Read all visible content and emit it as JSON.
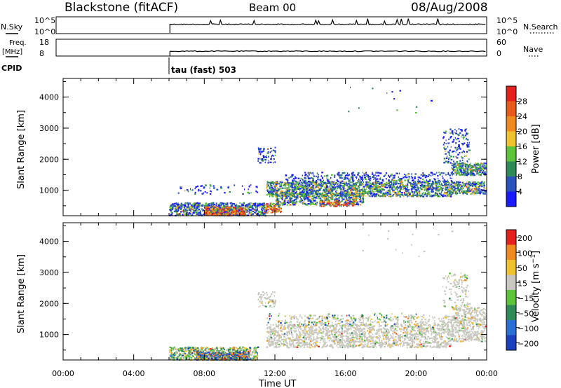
{
  "header": {
    "station": "Blackstone (fitACF)",
    "beam": "Beam 00",
    "date": "08/Aug/2008"
  },
  "strips": {
    "nsky_label": "N.Sky",
    "nsky_top": "10^5",
    "nsky_bottom": "10^0",
    "nsearch_label": "N.Search",
    "nsearch_top": "10^5",
    "nsearch_bottom": "10^0",
    "freq_label_1": "Freq.",
    "freq_label_2": "[MHz]",
    "freq_top": "18",
    "freq_bottom": "8",
    "nave_label": "Nave",
    "nave_top": "60",
    "nave_bottom": "0",
    "cpid_label": "CPID",
    "cpid_value": "tau (fast) 503"
  },
  "chart_data": [
    {
      "type": "heatmap",
      "ylabel": "Slant Range [km]",
      "yticks": [
        1000,
        2000,
        3000,
        4000
      ],
      "ylim": [
        180,
        4600
      ],
      "colorbar": {
        "label": "Power [dB]",
        "ticks": [
          "4",
          "8",
          "12",
          "16",
          "20",
          "24",
          "28"
        ],
        "colors": [
          "#1a1aff",
          "#2a52be",
          "#2e8b57",
          "#5cc43a",
          "#f2c12e",
          "#f08a1c",
          "#e85a1a",
          "#e6201b"
        ]
      },
      "regions": [
        {
          "t": [
            6.0,
            11.5
          ],
          "r": [
            200,
            650
          ],
          "level": "low-mid"
        },
        {
          "t": [
            8.0,
            10.3
          ],
          "r": [
            200,
            500
          ],
          "level": "high"
        },
        {
          "t": [
            11.5,
            22.0
          ],
          "r": [
            800,
            1400
          ],
          "level": "mid"
        },
        {
          "t": [
            12.0,
            17.0
          ],
          "r": [
            500,
            1000
          ],
          "level": "mid-high"
        },
        {
          "t": [
            22.0,
            24.0
          ],
          "r": [
            900,
            1900
          ],
          "level": "mid"
        },
        {
          "t": [
            21.5,
            24.0
          ],
          "r": [
            1500,
            3000
          ],
          "level": "low"
        }
      ]
    },
    {
      "type": "heatmap",
      "xlabel": "Time UT",
      "xticks": [
        "00:00",
        "04:00",
        "08:00",
        "12:00",
        "16:00",
        "20:00",
        "00:00"
      ],
      "xlim": [
        0,
        24
      ],
      "ylabel": "Slant Range [km]",
      "yticks": [
        1000,
        2000,
        3000,
        4000
      ],
      "ylim": [
        180,
        4600
      ],
      "colorbar": {
        "label": "Velocity [m s-1]",
        "ticks": [
          "200",
          "100",
          "50",
          "15",
          "−15",
          "−50",
          "−100",
          "−200"
        ],
        "colors": [
          "#1a3fbf",
          "#2a6fd6",
          "#2e8b57",
          "#5cc43a",
          "#c8c8c0",
          "#f2c12e",
          "#f08a1c",
          "#e6201b"
        ]
      },
      "regions": [
        {
          "t": [
            6.0,
            11.0
          ],
          "r": [
            200,
            650
          ],
          "vel": "mixed"
        },
        {
          "t": [
            7.5,
            10.5
          ],
          "r": [
            200,
            450
          ],
          "vel": "blue-orange"
        },
        {
          "t": [
            11.5,
            22.0
          ],
          "r": [
            600,
            1400
          ],
          "vel": "ground-scatter"
        },
        {
          "t": [
            22.0,
            24.0
          ],
          "r": [
            800,
            1900
          ],
          "vel": "ground-scatter"
        }
      ]
    }
  ]
}
